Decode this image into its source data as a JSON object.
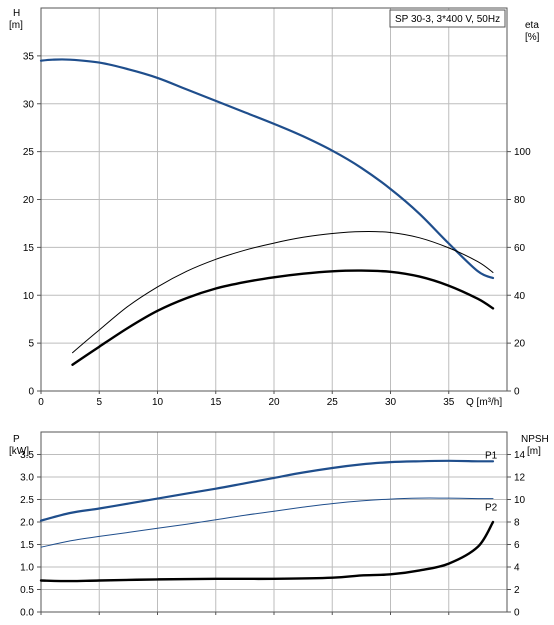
{
  "chart_data": [
    {
      "type": "line",
      "title": "SP 30-3, 3*400 V, 50Hz",
      "xlabel": "Q [m³/h]",
      "xlim": [
        0,
        40
      ],
      "x_ticks": [
        0,
        5,
        10,
        15,
        20,
        25,
        30,
        35
      ],
      "y_left": {
        "label_top": "H",
        "label_unit": "[m]",
        "lim": [
          0,
          40
        ],
        "ticks": [
          0,
          5,
          10,
          15,
          20,
          25,
          30,
          35
        ]
      },
      "y_right": {
        "label_top": "eta",
        "label_unit": "[%]",
        "lim": [
          0,
          160
        ],
        "ticks": [
          0,
          20,
          40,
          60,
          80,
          100
        ]
      },
      "grid": true,
      "series": [
        {
          "name": "",
          "axis": "left",
          "color": "#1f4e8c",
          "width": 2.2,
          "x": [
            0,
            1,
            2.5,
            5,
            7.5,
            10,
            12.5,
            15,
            17.5,
            20,
            22.5,
            25,
            27.5,
            30,
            32.5,
            35,
            37.5,
            38.8
          ],
          "y": [
            34.5,
            34.6,
            34.6,
            34.3,
            33.6,
            32.7,
            31.5,
            30.3,
            29.1,
            27.9,
            26.6,
            25.1,
            23.3,
            21.1,
            18.5,
            15.4,
            12.5,
            11.8
          ]
        },
        {
          "name": "",
          "axis": "right",
          "color": "#000000",
          "width": 1,
          "x": [
            2.7,
            5,
            7.5,
            10,
            12.5,
            15,
            17.5,
            20,
            22.5,
            25,
            27.5,
            30,
            32.5,
            35,
            37.5,
            38.8
          ],
          "y": [
            16,
            25.5,
            35.5,
            43.5,
            50,
            55,
            58.8,
            61.8,
            64.2,
            65.8,
            66.6,
            66.2,
            64,
            59.8,
            54,
            49.5
          ]
        },
        {
          "name": "",
          "axis": "right",
          "color": "#000000",
          "width": 2.4,
          "x": [
            2.7,
            5,
            7.5,
            10,
            12.5,
            15,
            17.5,
            20,
            22.5,
            25,
            27.5,
            30,
            32.5,
            35,
            37.5,
            38.8
          ],
          "y": [
            11,
            18.5,
            26.5,
            33.5,
            38.8,
            42.8,
            45.5,
            47.5,
            49,
            50,
            50.3,
            49.8,
            47.8,
            44,
            38.5,
            34.5
          ]
        }
      ]
    },
    {
      "type": "line",
      "xlim": [
        0,
        40
      ],
      "x_ticks": [
        0,
        5,
        10,
        15,
        20,
        25,
        30,
        35
      ],
      "y_left": {
        "label_top": "P",
        "label_unit": "[kW]",
        "lim": [
          0,
          4
        ],
        "ticks": [
          0.0,
          0.5,
          1.0,
          1.5,
          2.0,
          2.5,
          3.0,
          3.5
        ],
        "decimals": 1
      },
      "y_right": {
        "label_top": "NPSH",
        "label_unit": "[m]",
        "lim": [
          0,
          16
        ],
        "ticks": [
          0,
          2,
          4,
          6,
          8,
          10,
          12,
          14
        ]
      },
      "grid": true,
      "series": [
        {
          "name": "P1",
          "axis": "left",
          "color": "#1f4e8c",
          "width": 2.2,
          "x": [
            0,
            2.5,
            5,
            7.5,
            10,
            12.5,
            15,
            17.5,
            20,
            22.5,
            25,
            27.5,
            30,
            32.5,
            35,
            37.5,
            38.8
          ],
          "y": [
            2.03,
            2.2,
            2.3,
            2.41,
            2.52,
            2.63,
            2.74,
            2.86,
            2.98,
            3.1,
            3.2,
            3.28,
            3.33,
            3.35,
            3.36,
            3.35,
            3.35
          ]
        },
        {
          "name": "P2",
          "axis": "left",
          "color": "#1f4e8c",
          "width": 1,
          "x": [
            0,
            2.5,
            5,
            7.5,
            10,
            12.5,
            15,
            17.5,
            20,
            22.5,
            25,
            27.5,
            30,
            32.5,
            35,
            37.5,
            38.8
          ],
          "y": [
            1.44,
            1.58,
            1.68,
            1.77,
            1.86,
            1.95,
            2.05,
            2.15,
            2.24,
            2.33,
            2.41,
            2.47,
            2.51,
            2.53,
            2.53,
            2.52,
            2.52
          ]
        },
        {
          "name": "",
          "axis": "right",
          "color": "#000000",
          "width": 2.4,
          "x": [
            0,
            2.5,
            5,
            10,
            15,
            20,
            25,
            27.5,
            30,
            32.5,
            35,
            37.5,
            38.8
          ],
          "y": [
            2.8,
            2.75,
            2.8,
            2.9,
            2.95,
            2.95,
            3.05,
            3.25,
            3.7,
            4.6,
            6.2,
            8.8,
            8.0
          ]
        }
      ]
    }
  ]
}
